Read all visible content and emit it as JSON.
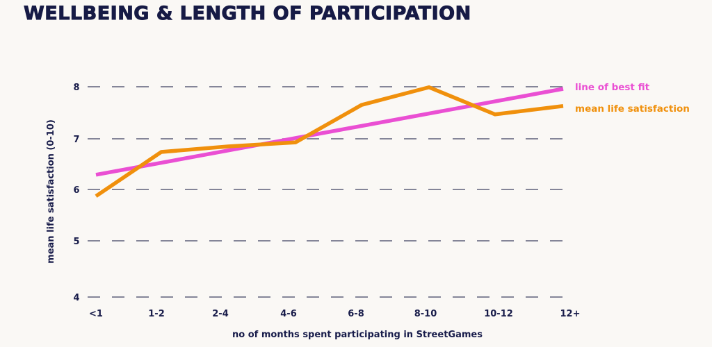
{
  "chart_data": {
    "type": "line",
    "title": "WELLBEING & LENGTH OF PARTICIPATION",
    "xlabel": "no of months spent participating in StreetGames",
    "ylabel": "mean life satisfaction (0-10)",
    "categories": [
      "<1",
      "1-2",
      "2-4",
      "4-6",
      "6-8",
      "8-10",
      "10-12",
      "12+"
    ],
    "yticks": [
      "4",
      "5",
      "6",
      "7",
      "8"
    ],
    "ylim": [
      4,
      8
    ],
    "grid": true,
    "legend_position": "right",
    "series": [
      {
        "name": "line of best fit",
        "color": "#ea4fd3",
        "values": [
          6.29,
          6.53,
          6.77,
          7.0,
          7.24,
          7.48,
          7.72,
          7.96
        ]
      },
      {
        "name": "mean life satisfaction",
        "color": "#f0900c",
        "values": [
          5.87,
          6.74,
          6.85,
          6.93,
          7.65,
          7.99,
          7.47,
          7.63
        ]
      }
    ]
  }
}
